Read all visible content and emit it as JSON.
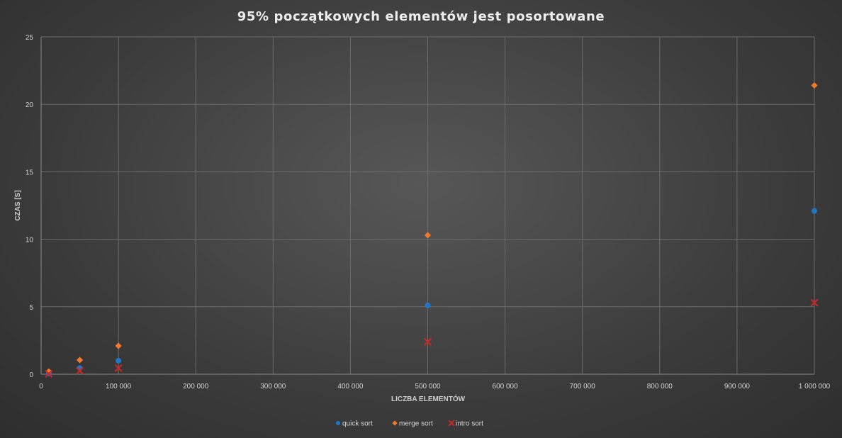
{
  "chart_data": {
    "type": "scatter",
    "title": "95% początkowych elementów jest posortowane",
    "xlabel": "LICZBA ELEMENTÓW",
    "ylabel": "CZAS [S]",
    "xlim": [
      0,
      1000000
    ],
    "ylim": [
      0,
      25
    ],
    "x_ticks": [
      0,
      100000,
      200000,
      300000,
      400000,
      500000,
      600000,
      700000,
      800000,
      900000,
      1000000
    ],
    "x_tick_labels": [
      "0",
      "100 000",
      "200 000",
      "300 000",
      "400 000",
      "500 000",
      "600 000",
      "700 000",
      "800 000",
      "900 000",
      "1 000 000"
    ],
    "y_ticks": [
      0,
      5,
      10,
      15,
      20,
      25
    ],
    "y_tick_labels": [
      "0",
      "5",
      "10",
      "15",
      "20",
      "25"
    ],
    "grid": true,
    "legend_position": "bottom",
    "series": [
      {
        "name": "quick sort",
        "marker": "circle",
        "color": "#1f77c9",
        "points": [
          [
            10000,
            0.05
          ],
          [
            50000,
            0.45
          ],
          [
            100000,
            1.0
          ],
          [
            500000,
            5.1
          ],
          [
            1000000,
            12.1
          ]
        ]
      },
      {
        "name": "merge sort",
        "marker": "diamond",
        "color": "#f0792b",
        "points": [
          [
            10000,
            0.2
          ],
          [
            50000,
            1.05
          ],
          [
            100000,
            2.1
          ],
          [
            500000,
            10.3
          ],
          [
            1000000,
            21.4
          ]
        ]
      },
      {
        "name": "intro sort",
        "marker": "x",
        "color": "#c62828",
        "points": [
          [
            10000,
            0.03
          ],
          [
            50000,
            0.25
          ],
          [
            100000,
            0.45
          ],
          [
            500000,
            2.4
          ],
          [
            1000000,
            5.3
          ]
        ]
      }
    ]
  }
}
